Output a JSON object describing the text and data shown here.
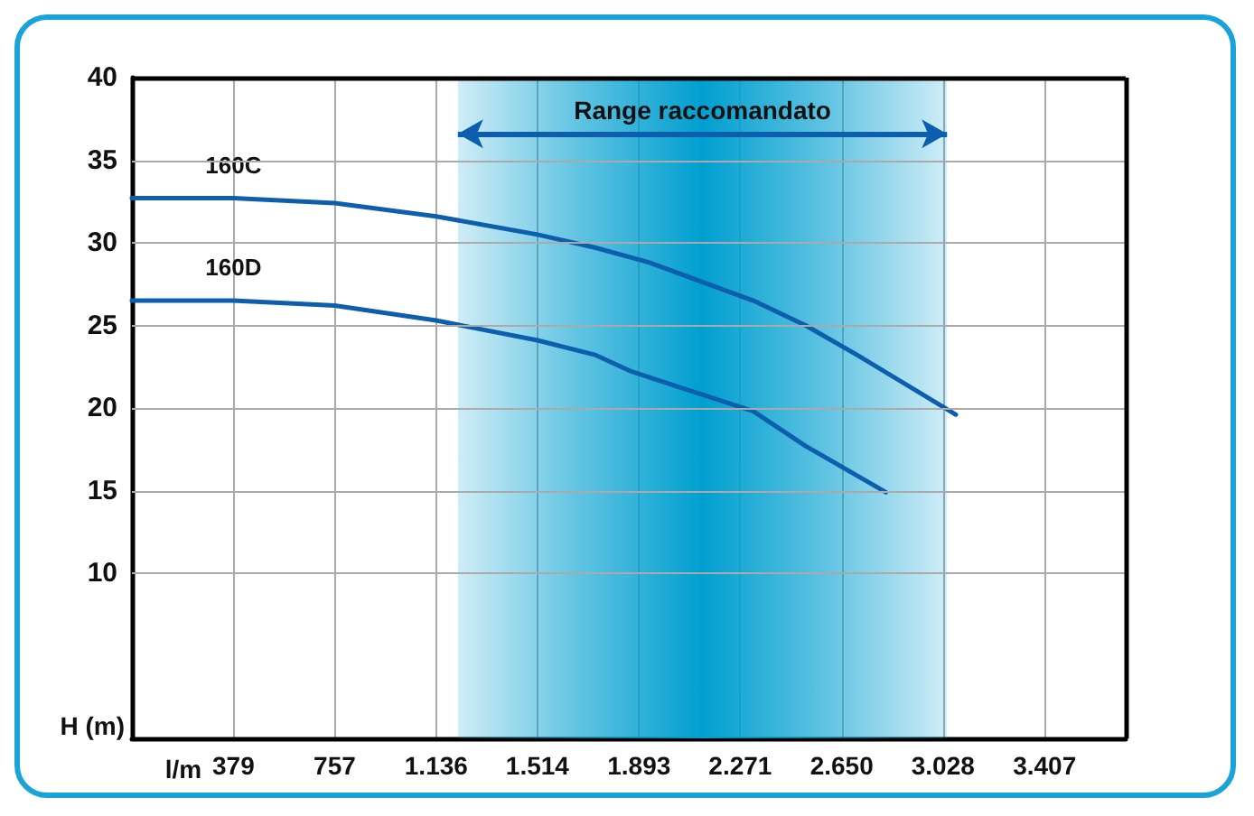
{
  "chart_data": {
    "type": "line",
    "xlabel": "l/m",
    "ylabel": "H (m)",
    "x": [
      0,
      379,
      757,
      1136,
      1514,
      1732,
      1932,
      2320,
      2515,
      2708,
      3076
    ],
    "series": [
      {
        "name": "160C",
        "color": "#0d5fae",
        "values": [
          32.7,
          32.7,
          32.4,
          31.6,
          30.5,
          29.7,
          28.8,
          26.5,
          25.0,
          23.2,
          19.6
        ]
      },
      {
        "name": "160D",
        "color": "#0d5fae",
        "x": [
          0,
          379,
          757,
          1136,
          1514,
          1732,
          1866,
          2320,
          2515,
          2815
        ],
        "values": [
          26.5,
          26.5,
          26.2,
          25.3,
          24.1,
          23.2,
          22.2,
          19.8,
          17.7,
          14.9
        ]
      }
    ],
    "xlim": [
      0,
      3710
    ],
    "xticks": [
      {
        "value": 379,
        "label": "379"
      },
      {
        "value": 757,
        "label": "757"
      },
      {
        "value": 1136,
        "label": "1.136"
      },
      {
        "value": 1514,
        "label": "1.514"
      },
      {
        "value": 1893,
        "label": "1.893"
      },
      {
        "value": 2271,
        "label": "2.271"
      },
      {
        "value": 2650,
        "label": "2.650"
      },
      {
        "value": 3028,
        "label": "3.028"
      },
      {
        "value": 3407,
        "label": "3.407"
      }
    ],
    "ylim": [
      0,
      40
    ],
    "yticks": [
      10,
      15,
      20,
      25,
      30,
      35,
      40
    ],
    "bands": [
      {
        "axis": "x",
        "from": 1217,
        "to": 3043,
        "label": "Range raccomandato",
        "color": "#009fd0"
      }
    ],
    "grid": true,
    "legend": false,
    "marker": "none",
    "line_style": "solid"
  }
}
